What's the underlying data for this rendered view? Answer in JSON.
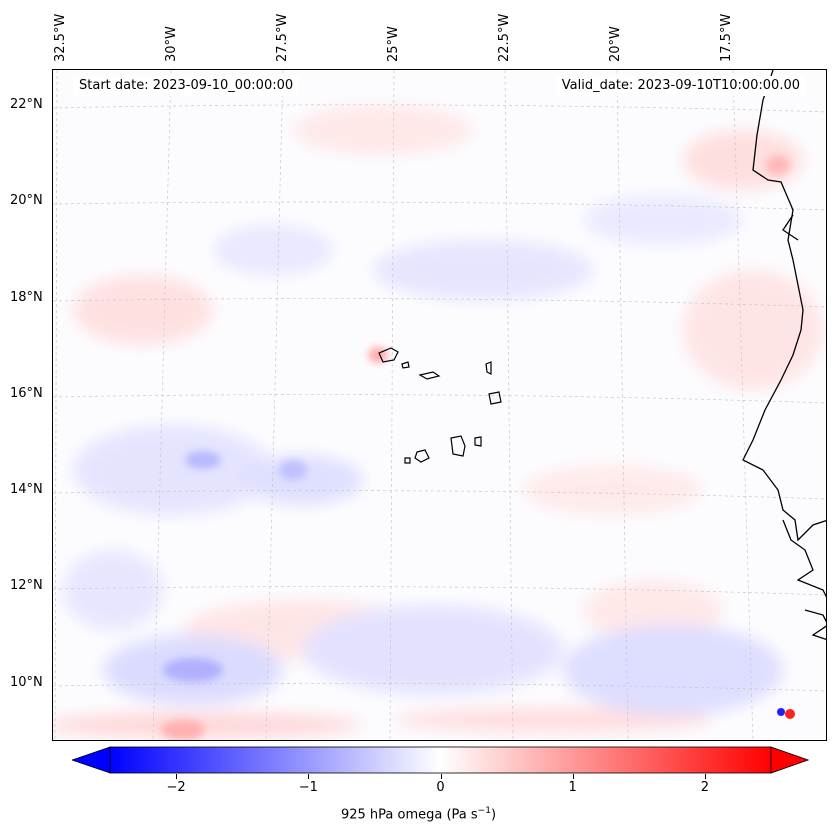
{
  "header": {
    "start_date": "Start date: 2023-09-10_00:00:00",
    "valid_date": "Valid_date: 2023-09-10T10:00:00.00"
  },
  "longitude_labels": [
    "32.5°W",
    "30°W",
    "27.5°W",
    "25°W",
    "22.5°W",
    "20°W",
    "17.5°W"
  ],
  "latitude_labels": [
    "22°N",
    "20°N",
    "18°N",
    "16°N",
    "14°N",
    "12°N",
    "10°N"
  ],
  "colorbar": {
    "label": "925 hPa omega (Pa s",
    "label_exponent": "−1",
    "label_close": ")",
    "ticks": [
      "−2",
      "−1",
      "0",
      "1",
      "2"
    ],
    "tick_values": [
      -2,
      -1,
      0,
      1,
      2
    ],
    "range": [
      -2.5,
      2.5
    ],
    "low_color": "#0000ff",
    "mid_color": "#ffffff",
    "high_color": "#ff0000"
  },
  "colors": {
    "coastline": "#000000",
    "gridline": "#bbbbbb",
    "frame": "#000000"
  }
}
